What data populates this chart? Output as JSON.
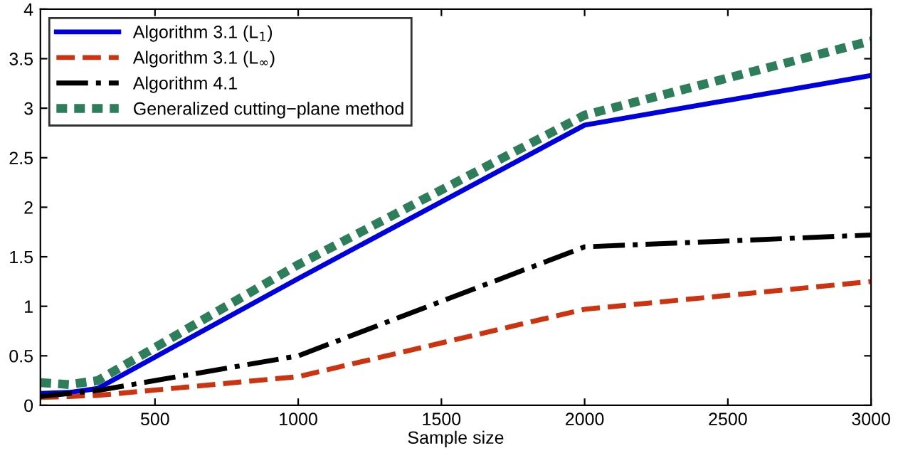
{
  "chart_data": {
    "type": "line",
    "xlabel": "Sample size",
    "x": [
      100,
      200,
      300,
      1000,
      2000,
      3000
    ],
    "series": [
      {
        "name": "Algorithm 3.1 (L$_{1}$)",
        "color": "#0000dd",
        "line_style": "solid",
        "values": [
          0.12,
          0.13,
          0.17,
          1.28,
          2.83,
          3.33
        ]
      },
      {
        "name": "Algorithm 3.1 (L$_{∞}$)",
        "color": "#cc3311",
        "line_style": "dashed",
        "values": [
          0.08,
          0.09,
          0.1,
          0.29,
          0.97,
          1.25
        ]
      },
      {
        "name": "Algorithm 4.1",
        "color": "#000000",
        "line_style": "dashdot",
        "values": [
          0.09,
          0.12,
          0.15,
          0.5,
          1.6,
          1.72
        ]
      },
      {
        "name": "Generalized cutting−plane method",
        "color": "#2e7d5b",
        "line_style": "dotted",
        "values": [
          0.23,
          0.21,
          0.25,
          1.42,
          2.93,
          3.68
        ]
      }
    ],
    "xlim": [
      100,
      3000
    ],
    "xticks": [
      500,
      1000,
      1500,
      2000,
      2500,
      3000
    ],
    "ylim": [
      0,
      4
    ],
    "yticks": [
      0,
      0.5,
      1,
      1.5,
      2,
      2.5,
      3,
      3.5,
      4
    ],
    "grid": false,
    "legend": "top left",
    "marker": "none"
  }
}
